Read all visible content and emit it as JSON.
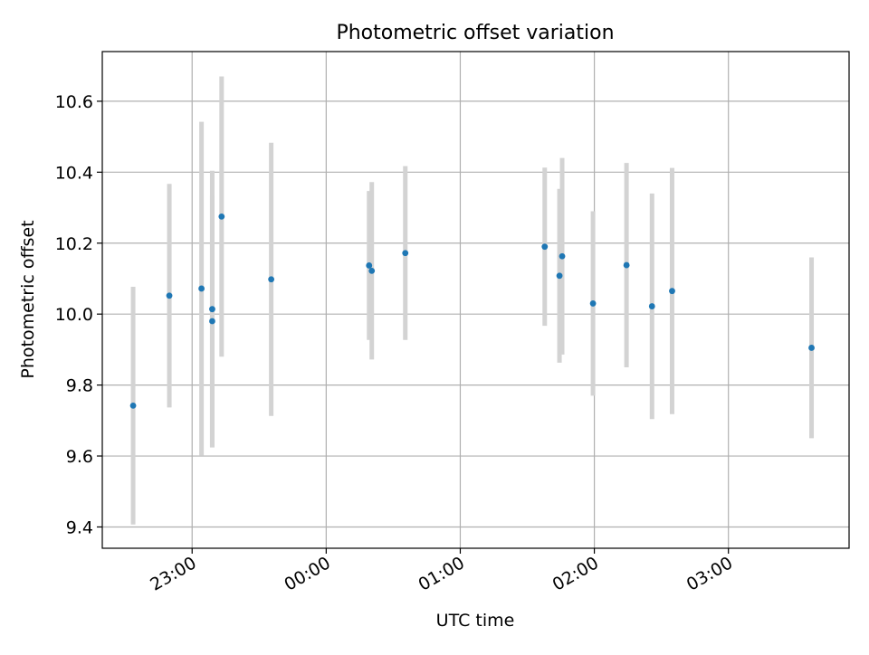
{
  "chart_data": {
    "type": "scatter",
    "title": "Photometric offset variation",
    "xlabel": "UTC time",
    "ylabel": "Photometric offset",
    "x_units": "hours relative to 00:00 UTC",
    "xlim": [
      -1.67,
      3.9
    ],
    "ylim": [
      9.34,
      10.74
    ],
    "x_ticks": [
      {
        "value": -1,
        "label": "23:00"
      },
      {
        "value": 0,
        "label": "00:00"
      },
      {
        "value": 1,
        "label": "01:00"
      },
      {
        "value": 2,
        "label": "02:00"
      },
      {
        "value": 3,
        "label": "03:00"
      }
    ],
    "y_ticks": [
      {
        "value": 9.4,
        "label": "9.4"
      },
      {
        "value": 9.6,
        "label": "9.6"
      },
      {
        "value": 9.8,
        "label": "9.8"
      },
      {
        "value": 10.0,
        "label": "10.0"
      },
      {
        "value": 10.2,
        "label": "10.2"
      },
      {
        "value": 10.4,
        "label": "10.4"
      },
      {
        "value": 10.6,
        "label": "10.6"
      }
    ],
    "grid": true,
    "marker_color": "#1f77b4",
    "errorbar_color": "#d3d3d3",
    "points": [
      {
        "time": "22:33",
        "x": -1.44,
        "y": 9.742,
        "err": 0.335
      },
      {
        "time": "22:50",
        "x": -1.17,
        "y": 10.052,
        "err": 0.315
      },
      {
        "time": "23:04",
        "x": -0.93,
        "y": 10.072,
        "err": 0.47
      },
      {
        "time": "23:09",
        "x": -0.85,
        "y": 10.014,
        "err": 0.39
      },
      {
        "time": "23:09",
        "x": -0.85,
        "y": 9.98,
        "err": 0.355
      },
      {
        "time": "23:13",
        "x": -0.78,
        "y": 10.275,
        "err": 0.395
      },
      {
        "time": "23:35",
        "x": -0.41,
        "y": 10.098,
        "err": 0.385
      },
      {
        "time": "00:19",
        "x": 0.32,
        "y": 10.137,
        "err": 0.21
      },
      {
        "time": "00:20",
        "x": 0.34,
        "y": 10.122,
        "err": 0.25
      },
      {
        "time": "00:35",
        "x": 0.59,
        "y": 10.172,
        "err": 0.245
      },
      {
        "time": "01:38",
        "x": 1.63,
        "y": 10.19,
        "err": 0.223
      },
      {
        "time": "01:44",
        "x": 1.74,
        "y": 10.108,
        "err": 0.245
      },
      {
        "time": "01:45",
        "x": 1.76,
        "y": 10.163,
        "err": 0.277
      },
      {
        "time": "01:59",
        "x": 1.99,
        "y": 10.03,
        "err": 0.26
      },
      {
        "time": "02:14",
        "x": 2.24,
        "y": 10.138,
        "err": 0.288
      },
      {
        "time": "02:26",
        "x": 2.43,
        "y": 10.022,
        "err": 0.318
      },
      {
        "time": "02:35",
        "x": 2.58,
        "y": 10.065,
        "err": 0.347
      },
      {
        "time": "03:37",
        "x": 3.62,
        "y": 9.905,
        "err": 0.255
      }
    ]
  }
}
